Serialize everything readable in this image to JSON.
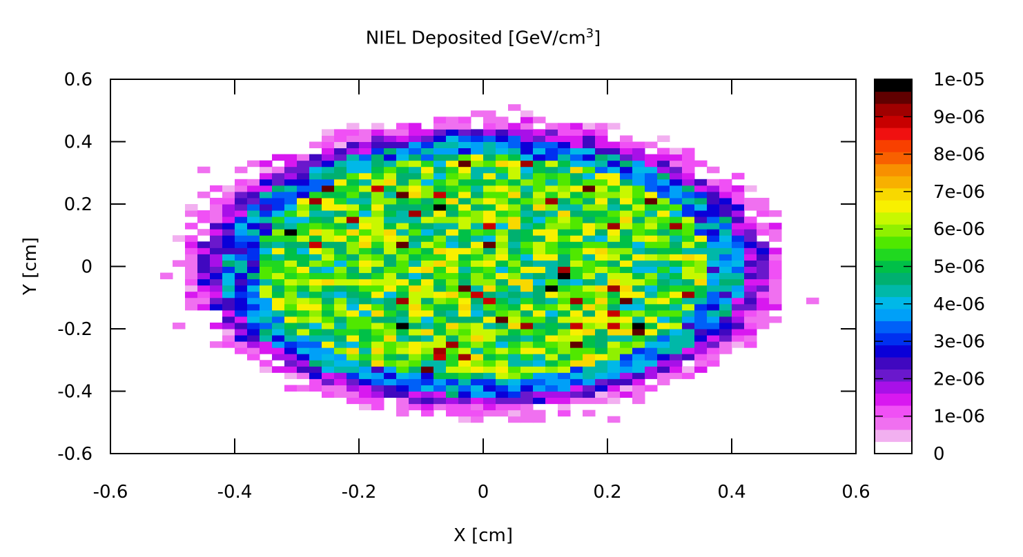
{
  "chart_data": {
    "type": "heatmap",
    "title": "NIEL Deposited [GeV/cm",
    "title_superscript": "3",
    "title_suffix": "]",
    "xlabel": "X [cm]",
    "ylabel": "Y [cm]",
    "xlim": [
      -0.6,
      0.6
    ],
    "ylim": [
      -0.6,
      0.6
    ],
    "x_ticks": [
      -0.6,
      -0.4,
      -0.2,
      0,
      0.2,
      0.4,
      0.6
    ],
    "x_tick_labels": [
      "-0.6",
      "-0.4",
      "-0.2",
      "0",
      "0.2",
      "0.4",
      "0.6"
    ],
    "y_ticks": [
      -0.6,
      -0.4,
      -0.2,
      0,
      0.2,
      0.4,
      0.6
    ],
    "y_tick_labels": [
      "-0.6",
      "-0.4",
      "-0.2",
      "0",
      "0.2",
      "0.4",
      "0.6"
    ],
    "grid": false,
    "colorbar": {
      "range": [
        0,
        1e-05
      ],
      "ticks": [
        0,
        1e-06,
        2e-06,
        3e-06,
        4e-06,
        5e-06,
        6e-06,
        7e-06,
        8e-06,
        9e-06,
        1e-05
      ],
      "tick_labels": [
        "0",
        "1e-06",
        "2e-06",
        "3e-06",
        "4e-06",
        "5e-06",
        "6e-06",
        "7e-06",
        "8e-06",
        "9e-06",
        "1e-05"
      ],
      "colors": [
        "#ffffff",
        "#f2b0f0",
        "#f070f0",
        "#f050f5",
        "#d818f0",
        "#a810e8",
        "#6a18cc",
        "#4008c0",
        "#0a00d8",
        "#0030f0",
        "#0060f8",
        "#00a0f8",
        "#00b8e8",
        "#00b8a8",
        "#00b070",
        "#00c048",
        "#20d820",
        "#50e800",
        "#90f000",
        "#c8f800",
        "#f8f000",
        "#f8d800",
        "#f8b000",
        "#f89000",
        "#f86000",
        "#f84000",
        "#f01010",
        "#c80000",
        "#a00000",
        "#600000",
        "#000000"
      ]
    },
    "distribution": {
      "shape": "ellipse",
      "center": [
        0.0,
        0.0
      ],
      "semi_axis_x": 0.47,
      "semi_axis_y": 0.46,
      "bin_size_cm": 0.02,
      "typical_center_value": 5.5e-06,
      "edge_value": 1e-06,
      "max_value": 1e-05
    }
  }
}
